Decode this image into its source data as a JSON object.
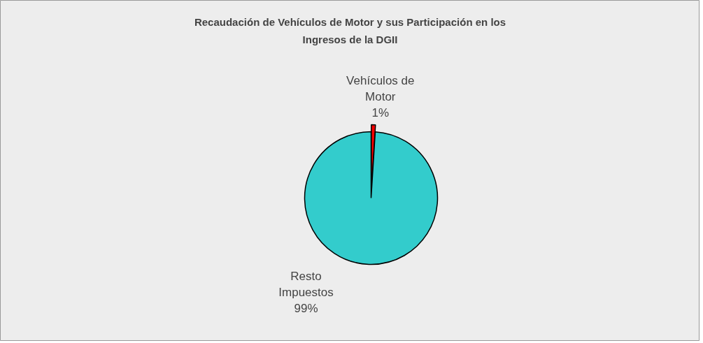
{
  "chart_data": {
    "type": "pie",
    "title": "Recaudación de Vehículos de Motor y sus Participación en los Ingresos de la DGII",
    "categories": [
      "Vehículos de Motor",
      "Resto Impuestos"
    ],
    "values": [
      1,
      99
    ],
    "colors": [
      "#ff0000",
      "#33cccc"
    ],
    "value_labels": [
      "1%",
      "99%"
    ]
  }
}
